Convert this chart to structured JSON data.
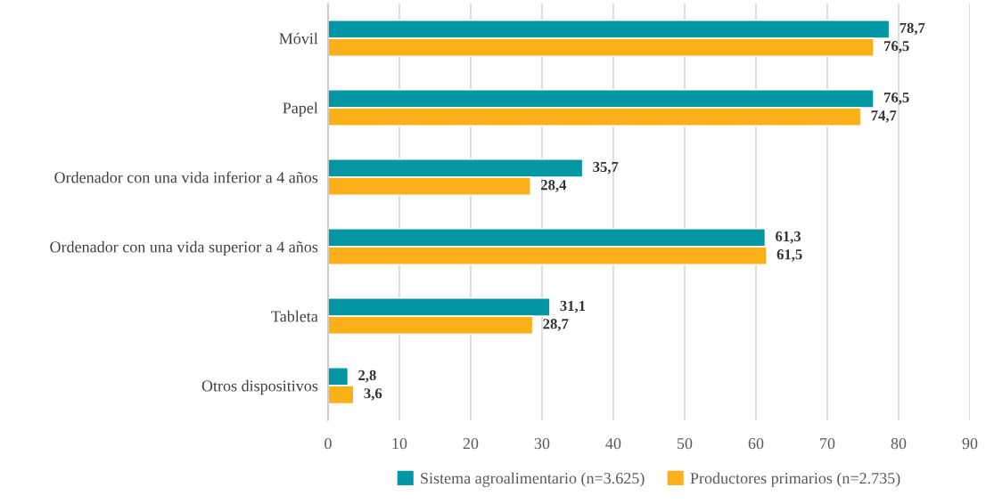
{
  "chart_data": {
    "type": "bar",
    "orientation": "horizontal",
    "categories": [
      "Móvil",
      "Papel",
      "Ordenador con una vida inferior a 4 años",
      "Ordenador con una vida superior a 4 años",
      "Tableta",
      "Otros dispositivos"
    ],
    "series": [
      {
        "name": "Sistema agroalimentario (n=3.625)",
        "color": "#0396a3",
        "values": [
          78.7,
          76.5,
          35.7,
          61.3,
          31.1,
          2.8
        ],
        "value_labels": [
          "78,7",
          "76,5",
          "35,7",
          "61,3",
          "31,1",
          "2,8"
        ]
      },
      {
        "name": "Productores primarios (n=2.735)",
        "color": "#fbb01a",
        "values": [
          76.5,
          74.7,
          28.4,
          61.5,
          28.7,
          3.6
        ],
        "value_labels": [
          "76,5",
          "74,7",
          "28,4",
          "61,5",
          "28,7",
          "3,6"
        ]
      }
    ],
    "xlim": [
      0,
      90
    ],
    "xticks": [
      0,
      10,
      20,
      30,
      40,
      50,
      60,
      70,
      80,
      90
    ],
    "grid": "x",
    "legend": "bottom"
  }
}
